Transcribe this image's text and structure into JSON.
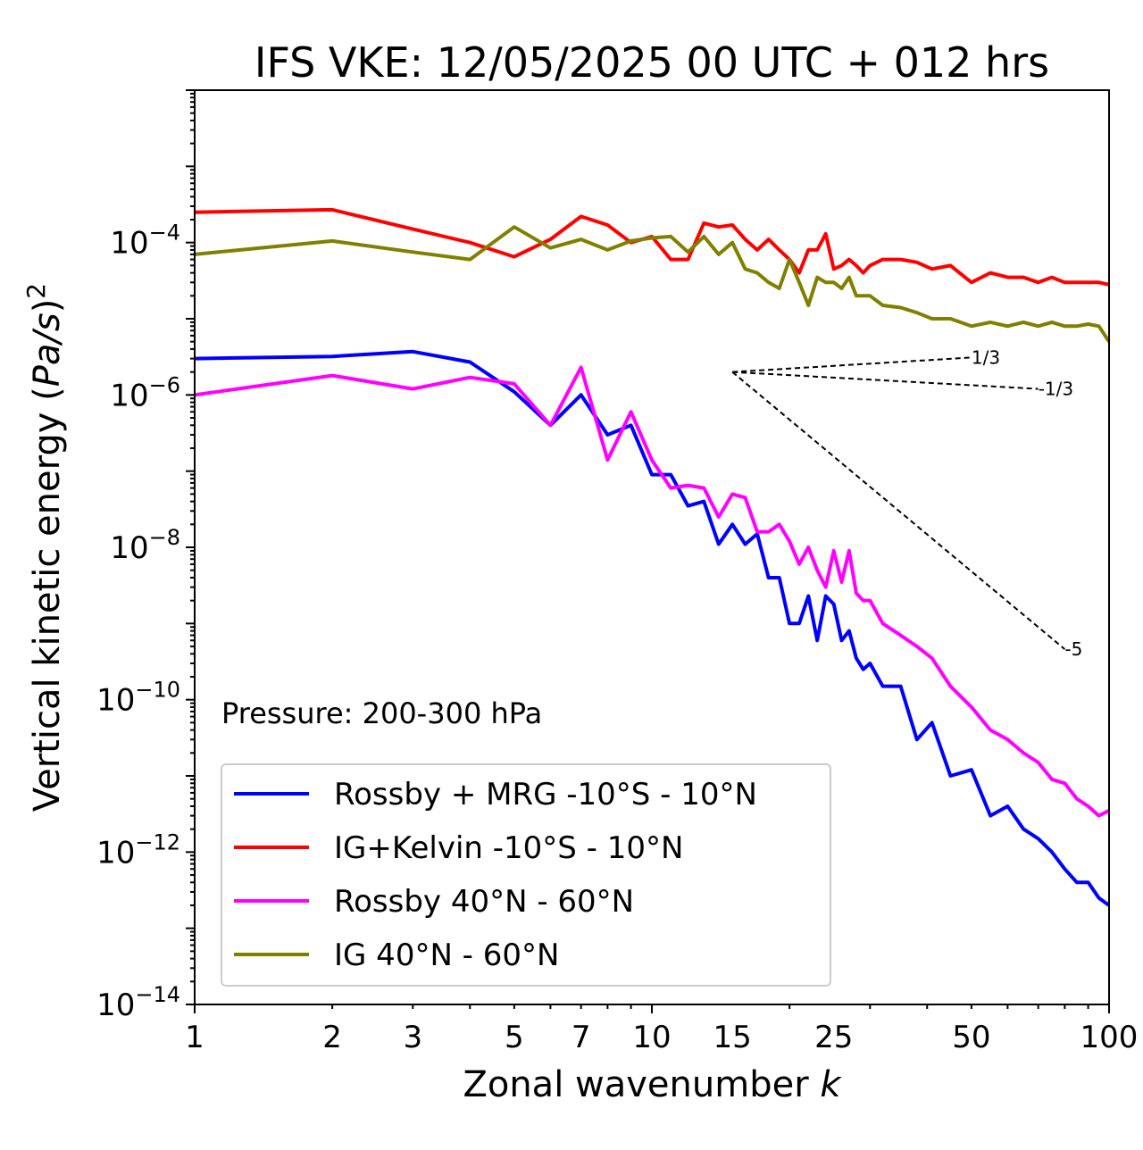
{
  "chart_data": {
    "type": "line",
    "title": "IFS VKE: 12/05/2025 00 UTC + 012 hrs",
    "xlabel": "Zonal wavenumber k",
    "xlabel_plain": "Zonal wavenumber ",
    "xlabel_var": "k",
    "ylabel": "Vertical kinetic energy (Pa/s)^2",
    "ylabel_plain": "Vertical kinetic energy ",
    "ylabel_var": "Pa/s",
    "ylabel_exp": "2",
    "xscale": "log",
    "yscale": "log",
    "xlim": [
      1,
      100
    ],
    "ylim": [
      1e-14,
      0.01
    ],
    "grid": false,
    "legend_position": "lower-left",
    "x_tick_labels": [
      "1",
      "2",
      "3",
      "5",
      "7",
      "10",
      "15",
      "25",
      "50",
      "100"
    ],
    "y_tick_labels": [
      {
        "base": "10",
        "exp": "−4"
      },
      {
        "base": "10",
        "exp": "−6"
      },
      {
        "base": "10",
        "exp": "−8"
      },
      {
        "base": "10",
        "exp": "−10"
      },
      {
        "base": "10",
        "exp": "−12"
      },
      {
        "base": "10",
        "exp": "−14"
      }
    ],
    "annotation": "Pressure: 200-300 hPa",
    "series": [
      {
        "name": "Rossby + MRG -10°S - 10°N",
        "color": "#0000ff",
        "x": [
          1,
          2,
          3,
          4,
          5,
          6,
          7,
          8,
          9,
          10,
          11,
          12,
          13,
          14,
          15,
          16,
          17,
          18,
          19,
          20,
          21,
          22,
          23,
          24,
          25,
          26,
          27,
          28,
          29,
          30,
          32,
          35,
          38,
          41,
          45,
          50,
          55,
          60,
          65,
          70,
          75,
          80,
          85,
          90,
          95,
          100
        ],
        "y": [
          3e-06,
          3.2e-06,
          3.7e-06,
          2.7e-06,
          1.1e-06,
          4e-07,
          1e-06,
          3e-07,
          4e-07,
          9e-08,
          9e-08,
          3.5e-08,
          4e-08,
          1.1e-08,
          2e-08,
          1.1e-08,
          1.5e-08,
          4e-09,
          4e-09,
          1e-09,
          1e-09,
          2.3e-09,
          6e-10,
          2.3e-09,
          1.8e-09,
          6e-10,
          8e-10,
          3.5e-10,
          2.5e-10,
          3e-10,
          1.5e-10,
          1.5e-10,
          3e-11,
          5e-11,
          1e-11,
          1.2e-11,
          3e-12,
          4e-12,
          2e-12,
          1.5e-12,
          1e-12,
          6e-13,
          4e-13,
          4e-13,
          2.5e-13,
          2e-13
        ]
      },
      {
        "name": "IG+Kelvin -10°S - 10°N",
        "color": "#ff0000",
        "x": [
          1,
          2,
          3,
          4,
          5,
          6,
          7,
          8,
          9,
          10,
          11,
          12,
          13,
          14,
          15,
          16,
          17,
          18,
          19,
          20,
          21,
          22,
          23,
          24,
          25,
          26,
          27,
          28,
          29,
          30,
          32,
          35,
          38,
          41,
          45,
          50,
          55,
          60,
          65,
          70,
          75,
          80,
          85,
          90,
          95,
          100
        ],
        "y": [
          0.00025,
          0.00027,
          0.00015,
          0.0001,
          6.5e-05,
          0.00011,
          0.00022,
          0.00017,
          0.0001,
          0.00012,
          6e-05,
          6e-05,
          0.00018,
          0.00016,
          0.00017,
          0.00011,
          8e-05,
          0.00011,
          8e-05,
          6e-05,
          4e-05,
          8e-05,
          8e-05,
          0.00013,
          4.5e-05,
          5e-05,
          6e-05,
          5e-05,
          4e-05,
          5e-05,
          6e-05,
          6e-05,
          5.5e-05,
          4.5e-05,
          5e-05,
          3e-05,
          4e-05,
          3.5e-05,
          3.5e-05,
          3e-05,
          3.5e-05,
          3e-05,
          3e-05,
          3e-05,
          3e-05,
          2.8e-05
        ]
      },
      {
        "name": "Rossby 40°N - 60°N",
        "color": "#ff00ff",
        "x": [
          1,
          2,
          3,
          4,
          5,
          6,
          7,
          8,
          9,
          10,
          11,
          12,
          13,
          14,
          15,
          16,
          17,
          18,
          19,
          20,
          21,
          22,
          23,
          24,
          25,
          26,
          27,
          28,
          29,
          30,
          32,
          35,
          38,
          41,
          45,
          50,
          55,
          60,
          65,
          70,
          75,
          80,
          85,
          90,
          95,
          100
        ],
        "y": [
          1e-06,
          1.8e-06,
          1.2e-06,
          1.7e-06,
          1.4e-06,
          4e-07,
          2.3e-06,
          1.4e-07,
          6e-07,
          1.4e-07,
          6e-08,
          6.5e-08,
          6e-08,
          2.5e-08,
          5e-08,
          4.5e-08,
          1.6e-08,
          1.6e-08,
          2e-08,
          1.2e-08,
          6e-09,
          1e-08,
          5e-09,
          3e-09,
          9e-09,
          3.5e-09,
          9e-09,
          2.5e-09,
          2e-09,
          2e-09,
          1e-09,
          7e-10,
          5e-10,
          3.5e-10,
          1.5e-10,
          8e-11,
          4e-11,
          3e-11,
          2e-11,
          1.5e-11,
          9e-12,
          8e-12,
          5e-12,
          4e-12,
          3e-12,
          3.5e-12
        ]
      },
      {
        "name": "IG 40°N - 60°N",
        "color": "#808000",
        "x": [
          1,
          2,
          3,
          4,
          5,
          6,
          7,
          8,
          9,
          10,
          11,
          12,
          13,
          14,
          15,
          16,
          17,
          18,
          19,
          20,
          21,
          22,
          23,
          24,
          25,
          26,
          27,
          28,
          29,
          30,
          32,
          35,
          38,
          41,
          45,
          50,
          55,
          60,
          65,
          70,
          75,
          80,
          85,
          90,
          95,
          100
        ],
        "y": [
          7e-05,
          0.000105,
          7.5e-05,
          6e-05,
          0.00016,
          8.5e-05,
          0.00011,
          8e-05,
          0.000105,
          0.000115,
          0.00012,
          7.5e-05,
          0.00012,
          7e-05,
          0.0001,
          4.5e-05,
          4e-05,
          3e-05,
          2.5e-05,
          6e-05,
          3e-05,
          1.5e-05,
          3.5e-05,
          3e-05,
          3e-05,
          2.5e-05,
          3.5e-05,
          2e-05,
          2e-05,
          2e-05,
          1.5e-05,
          1.4e-05,
          1.2e-05,
          1e-05,
          1e-05,
          8e-06,
          9e-06,
          8e-06,
          9e-06,
          8e-06,
          9e-06,
          8e-06,
          8e-06,
          8.5e-06,
          8e-06,
          5e-06
        ]
      }
    ],
    "reference_lines": [
      {
        "slope_label": "1/3",
        "x": [
          15,
          50
        ],
        "y": [
          2e-06,
          3.1e-06
        ]
      },
      {
        "slope_label": "-1/3",
        "x": [
          15,
          70
        ],
        "y": [
          2e-06,
          1.2e-06
        ]
      },
      {
        "slope_label": "-5",
        "x": [
          15,
          80
        ],
        "y": [
          2e-06,
          4.6e-10
        ]
      }
    ]
  }
}
